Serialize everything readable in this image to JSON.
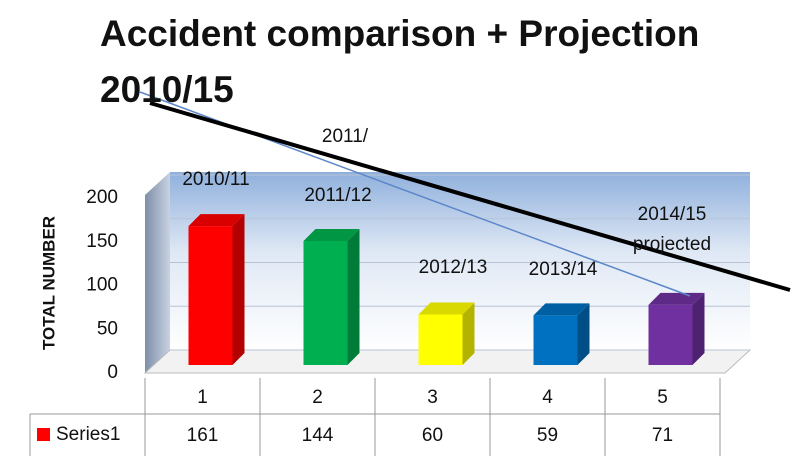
{
  "chart_data": {
    "type": "bar3d",
    "title": "Accident comparison + Projection 2010/15",
    "ylabel": "TOTAL NUMBER",
    "categories": [
      "1",
      "2",
      "3",
      "4",
      "5"
    ],
    "series": [
      {
        "name": "Series1",
        "color": "#ff0000",
        "values": [
          161,
          144,
          60,
          59,
          71
        ]
      }
    ],
    "colors": [
      "#ff0000",
      "#00b050",
      "#ffff00",
      "#0070c0",
      "#7030a0"
    ],
    "ylim": [
      0,
      200
    ],
    "yticks": [
      0,
      50,
      100,
      150,
      200
    ],
    "grid": true,
    "annotations": [
      "2011/",
      "2010/11",
      "2011/12",
      "2012/13",
      "2013/14",
      "2014/15",
      "projected"
    ]
  }
}
